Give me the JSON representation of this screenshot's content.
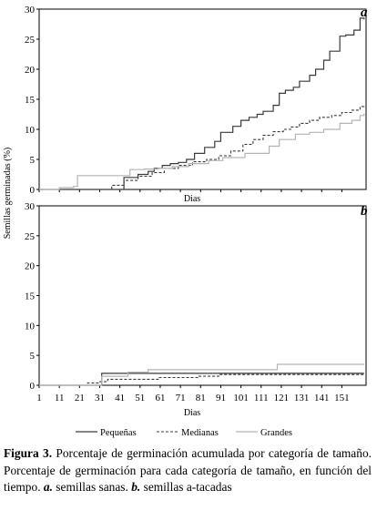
{
  "chart_data": [
    {
      "panel": "a",
      "type": "line",
      "ylabel": "Semillas germinadas (%)",
      "xlabel": "Dias",
      "ylim": [
        0,
        30
      ],
      "yticks": [
        0,
        5,
        10,
        15,
        20,
        25,
        30
      ],
      "xlim": [
        1,
        163
      ],
      "series": [
        {
          "name": "Pequeñas",
          "style": "solid",
          "color": "#3a3a3a",
          "x": [
            1,
            42,
            43,
            50,
            55,
            58,
            62,
            66,
            70,
            74,
            78,
            83,
            88,
            91,
            97,
            101,
            105,
            109,
            112,
            117,
            120,
            123,
            127,
            130,
            135,
            138,
            142,
            145,
            150,
            153,
            157,
            160,
            162
          ],
          "y": [
            0,
            0,
            2,
            2.5,
            3,
            3.5,
            4,
            4.3,
            4.5,
            5,
            6,
            7,
            8,
            9.5,
            10.5,
            11.5,
            12,
            12.5,
            13,
            14,
            16,
            16.5,
            17,
            18,
            19,
            20,
            21.5,
            23,
            25.5,
            25.7,
            26.5,
            28.5,
            28.3
          ]
        },
        {
          "name": "Medianas",
          "style": "dashed",
          "color": "#3a3a3a",
          "x": [
            1,
            30,
            37,
            43,
            50,
            57,
            63,
            70,
            77,
            84,
            90,
            96,
            102,
            107,
            112,
            117,
            122,
            126,
            130,
            135,
            140,
            146,
            151,
            156,
            160,
            162
          ],
          "y": [
            0,
            0,
            0.7,
            1.5,
            2.2,
            2.8,
            3.5,
            4,
            4.6,
            5,
            5.6,
            6.4,
            7.5,
            8.3,
            9,
            9.6,
            10,
            10.4,
            11,
            11.5,
            12,
            12.3,
            12.8,
            13.2,
            13.8,
            14
          ]
        },
        {
          "name": "Grandes",
          "style": "solid",
          "color": "#b4b4b4",
          "x": [
            1,
            11,
            18,
            20,
            24,
            32,
            40,
            46,
            53,
            60,
            67,
            75,
            85,
            92,
            103,
            115,
            120,
            128,
            135,
            142,
            150,
            156,
            160,
            162
          ],
          "y": [
            0,
            0.3,
            0.5,
            2.3,
            2.3,
            2.3,
            2.3,
            3.3,
            3.4,
            3.5,
            3.8,
            4.3,
            4.8,
            5.3,
            6,
            7.2,
            8.3,
            9.2,
            9.5,
            10,
            11,
            11.5,
            12.3,
            12.6
          ]
        }
      ]
    },
    {
      "panel": "b",
      "type": "line",
      "ylabel": "Semillas germinadas (%)",
      "xlabel": "Dias",
      "ylim": [
        0,
        30
      ],
      "yticks": [
        0,
        5,
        10,
        15,
        20,
        25,
        30
      ],
      "xlim": [
        1,
        163
      ],
      "xticks": [
        1,
        11,
        21,
        31,
        41,
        51,
        61,
        71,
        81,
        91,
        101,
        111,
        121,
        131,
        141,
        151
      ],
      "series": [
        {
          "name": "Pequeñas",
          "style": "solid",
          "color": "#3a3a3a",
          "x": [
            1,
            31,
            32,
            100,
            162
          ],
          "y": [
            0,
            0,
            2,
            2,
            2
          ]
        },
        {
          "name": "Medianas",
          "style": "dashed",
          "color": "#3a3a3a",
          "x": [
            1,
            21,
            25,
            31,
            35,
            55,
            60,
            80,
            90,
            162
          ],
          "y": [
            0,
            0,
            0.4,
            0.6,
            1,
            1,
            1.3,
            1.5,
            1.8,
            1.8
          ]
        },
        {
          "name": "Grandes",
          "style": "solid",
          "color": "#b4b4b4",
          "x": [
            1,
            20,
            32,
            45,
            55,
            80,
            117,
            119,
            162
          ],
          "y": [
            0,
            0,
            1.5,
            2.2,
            2.6,
            2.6,
            2.6,
            3.5,
            3.5
          ]
        }
      ]
    }
  ],
  "legend": [
    "Pequeñas",
    "Medianas",
    "Grandes"
  ],
  "caption": {
    "label": "Figura 3.",
    "part1": " Porcentaje de germinación acumulada por categoría de tamaño. Porcentaje de germinación para  cada categoría de tamaño, en función del tiempo. ",
    "a": "a.",
    "part2": " semillas sanas. ",
    "b": "b.",
    "part3": " semillas a-tacadas"
  }
}
